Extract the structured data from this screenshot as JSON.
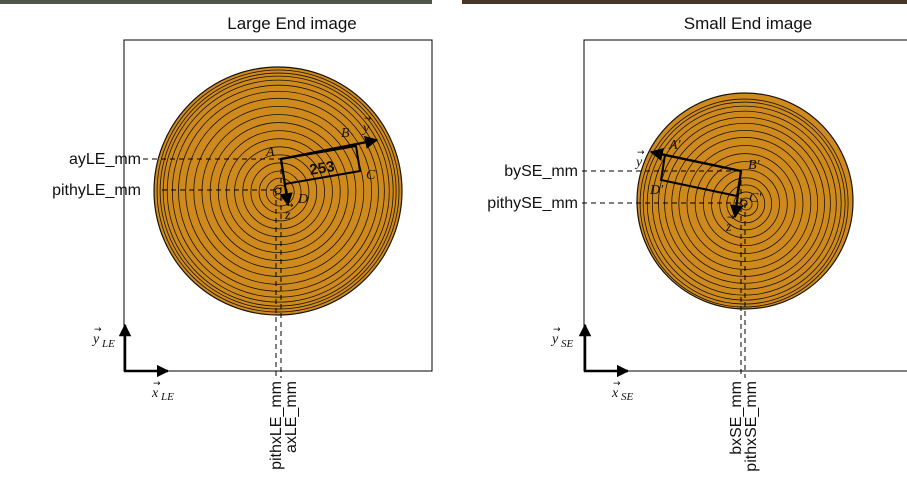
{
  "colors": {
    "wood": "#cf8a1e",
    "ring": "#1a1208",
    "line": "#000000",
    "background": "#ffffff"
  },
  "photo_strips": [
    {
      "name": "large-end-photo-strip",
      "colors": [
        "#3c4a3a",
        "#5e6b52",
        "#8a8d76",
        "#4a3c2c"
      ]
    },
    {
      "name": "small-end-photo-strip",
      "colors": [
        "#3a2a1e",
        "#6b4a2e",
        "#4d3a2a",
        "#2c221a"
      ]
    }
  ],
  "large_end": {
    "title": "Large End image",
    "left_labels": {
      "a_y": "ayLE_mm",
      "pith_y": "pithyLE_mm"
    },
    "bottom_labels": {
      "pith_x": "pithxLE_mm",
      "a_x": "axLE_mm"
    },
    "axis_x": {
      "base": "x",
      "sub": "LE"
    },
    "axis_y": {
      "base": "y",
      "sub": "LE"
    },
    "points": {
      "A": "A",
      "B": "B",
      "C": "C",
      "D": "D"
    },
    "vectors": {
      "y": "y",
      "z": "z"
    },
    "box_value": "253"
  },
  "small_end": {
    "title": "Small End image",
    "left_labels": {
      "b_y": "bySE_mm",
      "pith_y": "pithySE_mm"
    },
    "bottom_labels": {
      "b_x": "bxSE_mm",
      "pith_x": "pithxSE_mm"
    },
    "axis_x": {
      "base": "x",
      "sub": "SE"
    },
    "axis_y": {
      "base": "y",
      "sub": "SE"
    },
    "points": {
      "A": "A′",
      "B": "B′",
      "C": "C′",
      "D": "D′"
    },
    "vectors": {
      "y": "y",
      "z": "z"
    }
  }
}
